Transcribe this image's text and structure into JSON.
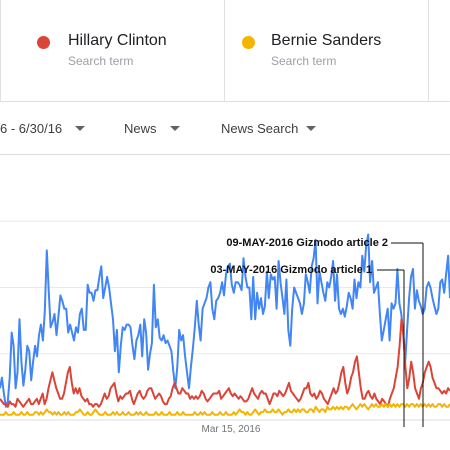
{
  "terms": [
    {
      "name": "Hillary Clinton",
      "subtitle": "Search term",
      "color": "#db4437"
    },
    {
      "name": "Bernie Sanders",
      "subtitle": "Search term",
      "color": "#f4b400"
    },
    {
      "name": "",
      "subtitle": "",
      "color": "#4285f4"
    }
  ],
  "filters": {
    "date_range": "6 - 6/30/16",
    "category": "News",
    "search_type": "News Search"
  },
  "chart_data": {
    "type": "line",
    "x_tick_labels": [
      "Mar 15, 2016"
    ],
    "ylim": [
      0,
      100
    ],
    "grid": true,
    "annotations": [
      {
        "label": "09-MAY-2016 Gizmodo article 2"
      },
      {
        "label": "03-MAY-2016 Gizmodo article 1"
      }
    ],
    "series": [
      {
        "color": "#4285f4",
        "values": [
          12,
          16,
          10,
          5,
          7,
          16,
          33,
          28,
          12,
          18,
          38,
          22,
          13,
          19,
          28,
          26,
          15,
          22,
          28,
          24,
          32,
          36,
          30,
          41,
          64,
          49,
          35,
          37,
          40,
          32,
          39,
          47,
          45,
          42,
          42,
          33,
          36,
          33,
          30,
          35,
          33,
          40,
          42,
          34,
          34,
          51,
          48,
          48,
          45,
          49,
          49,
          54,
          58,
          46,
          50,
          54,
          50,
          44,
          38,
          26,
          34,
          18,
          28,
          35,
          34,
          36,
          36,
          35,
          28,
          23,
          30,
          32,
          36,
          24,
          38,
          33,
          19,
          25,
          29,
          51,
          35,
          38,
          31,
          30,
          32,
          29,
          30,
          28,
          26,
          18,
          12,
          20,
          34,
          30,
          32,
          24,
          18,
          12,
          20,
          27,
          35,
          45,
          36,
          30,
          42,
          44,
          46,
          50,
          52,
          42,
          38,
          45,
          46,
          48,
          52,
          47,
          55,
          58,
          59,
          51,
          48,
          52,
          52,
          51,
          49,
          61,
          54,
          50,
          50,
          38,
          54,
          38,
          48,
          42,
          46,
          40,
          43,
          56,
          46,
          55,
          53,
          54,
          42,
          60,
          52,
          46,
          40,
          53,
          34,
          28,
          42,
          50,
          48,
          46,
          44,
          40,
          44,
          55,
          52,
          48,
          58,
          61,
          68,
          44,
          56,
          52,
          48,
          45,
          52,
          50,
          54,
          60,
          45,
          55,
          42,
          40,
          42,
          39,
          43,
          48,
          46,
          42,
          53,
          46,
          52,
          50,
          62,
          56,
          66,
          70,
          52,
          60,
          48,
          50,
          52,
          40,
          30,
          34,
          38,
          42,
          30,
          44,
          42,
          44,
          57,
          44,
          40,
          33,
          22,
          34,
          46,
          54,
          57,
          42,
          49,
          45,
          43,
          40,
          42,
          50,
          52,
          50,
          46,
          43,
          40,
          42,
          52,
          53,
          48,
          55,
          62,
          46
        ]
      },
      {
        "color": "#db4437",
        "values": [
          8,
          7,
          6,
          6,
          5,
          7,
          6,
          6,
          5,
          8,
          7,
          6,
          5,
          6,
          7,
          8,
          6,
          6,
          7,
          8,
          6,
          8,
          10,
          6,
          8,
          12,
          15,
          18,
          15,
          12,
          10,
          8,
          8,
          10,
          14,
          18,
          20,
          14,
          10,
          12,
          10,
          12,
          9,
          8,
          7,
          8,
          6,
          6,
          5,
          6,
          6,
          5,
          6,
          8,
          10,
          8,
          9,
          12,
          13,
          14,
          10,
          7,
          9,
          8,
          9,
          10,
          10,
          11,
          8,
          6,
          8,
          10,
          11,
          9,
          8,
          9,
          11,
          12,
          12,
          10,
          8,
          9,
          10,
          9,
          7,
          6,
          6,
          8,
          9,
          12,
          14,
          12,
          10,
          10,
          12,
          11,
          10,
          10,
          8,
          9,
          8,
          9,
          8,
          9,
          11,
          10,
          8,
          7,
          8,
          9,
          10,
          10,
          10,
          11,
          8,
          9,
          10,
          11,
          12,
          10,
          9,
          10,
          9,
          8,
          9,
          8,
          7,
          7,
          8,
          10,
          12,
          10,
          9,
          8,
          10,
          11,
          10,
          10,
          8,
          6,
          8,
          10,
          10,
          9,
          11,
          10,
          9,
          10,
          12,
          14,
          11,
          10,
          9,
          8,
          7,
          8,
          10,
          12,
          12,
          14,
          10,
          9,
          10,
          8,
          9,
          11,
          10,
          8,
          7,
          6,
          8,
          10,
          12,
          10,
          11,
          14,
          18,
          20,
          14,
          10,
          12,
          16,
          18,
          22,
          24,
          18,
          12,
          8,
          8,
          10,
          11,
          9,
          8,
          10,
          8,
          7,
          6,
          8,
          7,
          6,
          5,
          8,
          10,
          12,
          16,
          20,
          28,
          38,
          32,
          20,
          12,
          16,
          22,
          18,
          12,
          10,
          8,
          12,
          14,
          18,
          20,
          22,
          20,
          16,
          14,
          12,
          12,
          11,
          10,
          11,
          10,
          12,
          11
        ]
      },
      {
        "color": "#f4b400",
        "values": [
          2,
          2,
          2,
          3,
          2,
          2,
          2,
          3,
          2,
          2,
          2,
          3,
          2,
          2,
          3,
          2,
          2,
          2,
          3,
          3,
          2,
          3,
          2,
          3,
          4,
          3,
          3,
          2,
          3,
          2,
          3,
          2,
          2,
          3,
          2,
          3,
          2,
          2,
          2,
          3,
          3,
          4,
          3,
          2,
          2,
          3,
          2,
          2,
          3,
          4,
          3,
          2,
          2,
          2,
          3,
          2,
          2,
          2,
          3,
          2,
          3,
          2,
          2,
          3,
          2,
          2,
          3,
          2,
          2,
          2,
          3,
          2,
          3,
          2,
          2,
          3,
          2,
          2,
          2,
          2,
          3,
          2,
          2,
          3,
          2,
          2,
          2,
          3,
          2,
          2,
          2,
          3,
          2,
          2,
          3,
          2,
          2,
          2,
          2,
          2,
          3,
          2,
          2,
          3,
          2,
          3,
          2,
          2,
          2,
          3,
          2,
          2,
          2,
          3,
          2,
          2,
          3,
          2,
          2,
          2,
          3,
          2,
          3,
          4,
          3,
          3,
          2,
          3,
          2,
          2,
          3,
          4,
          3,
          2,
          3,
          3,
          4,
          3,
          3,
          3,
          4,
          3,
          3,
          4,
          3,
          2,
          3,
          3,
          4,
          3,
          3,
          4,
          3,
          4,
          3,
          4,
          4,
          3,
          3,
          4,
          4,
          3,
          5,
          4,
          3,
          4,
          4,
          3,
          5,
          4,
          4,
          5,
          4,
          5,
          4,
          5,
          4,
          5,
          5,
          4,
          5,
          6,
          5,
          4,
          5,
          6,
          5,
          6,
          5,
          4,
          5,
          6,
          5,
          6,
          5,
          5,
          6,
          5,
          6,
          5,
          6,
          5,
          6,
          5,
          6,
          5,
          6,
          6,
          5,
          6,
          5,
          6,
          6,
          5,
          6,
          5,
          6,
          5,
          6,
          5,
          6,
          5,
          6,
          5,
          5,
          6,
          6,
          5,
          6,
          5,
          5,
          6
        ]
      }
    ]
  }
}
